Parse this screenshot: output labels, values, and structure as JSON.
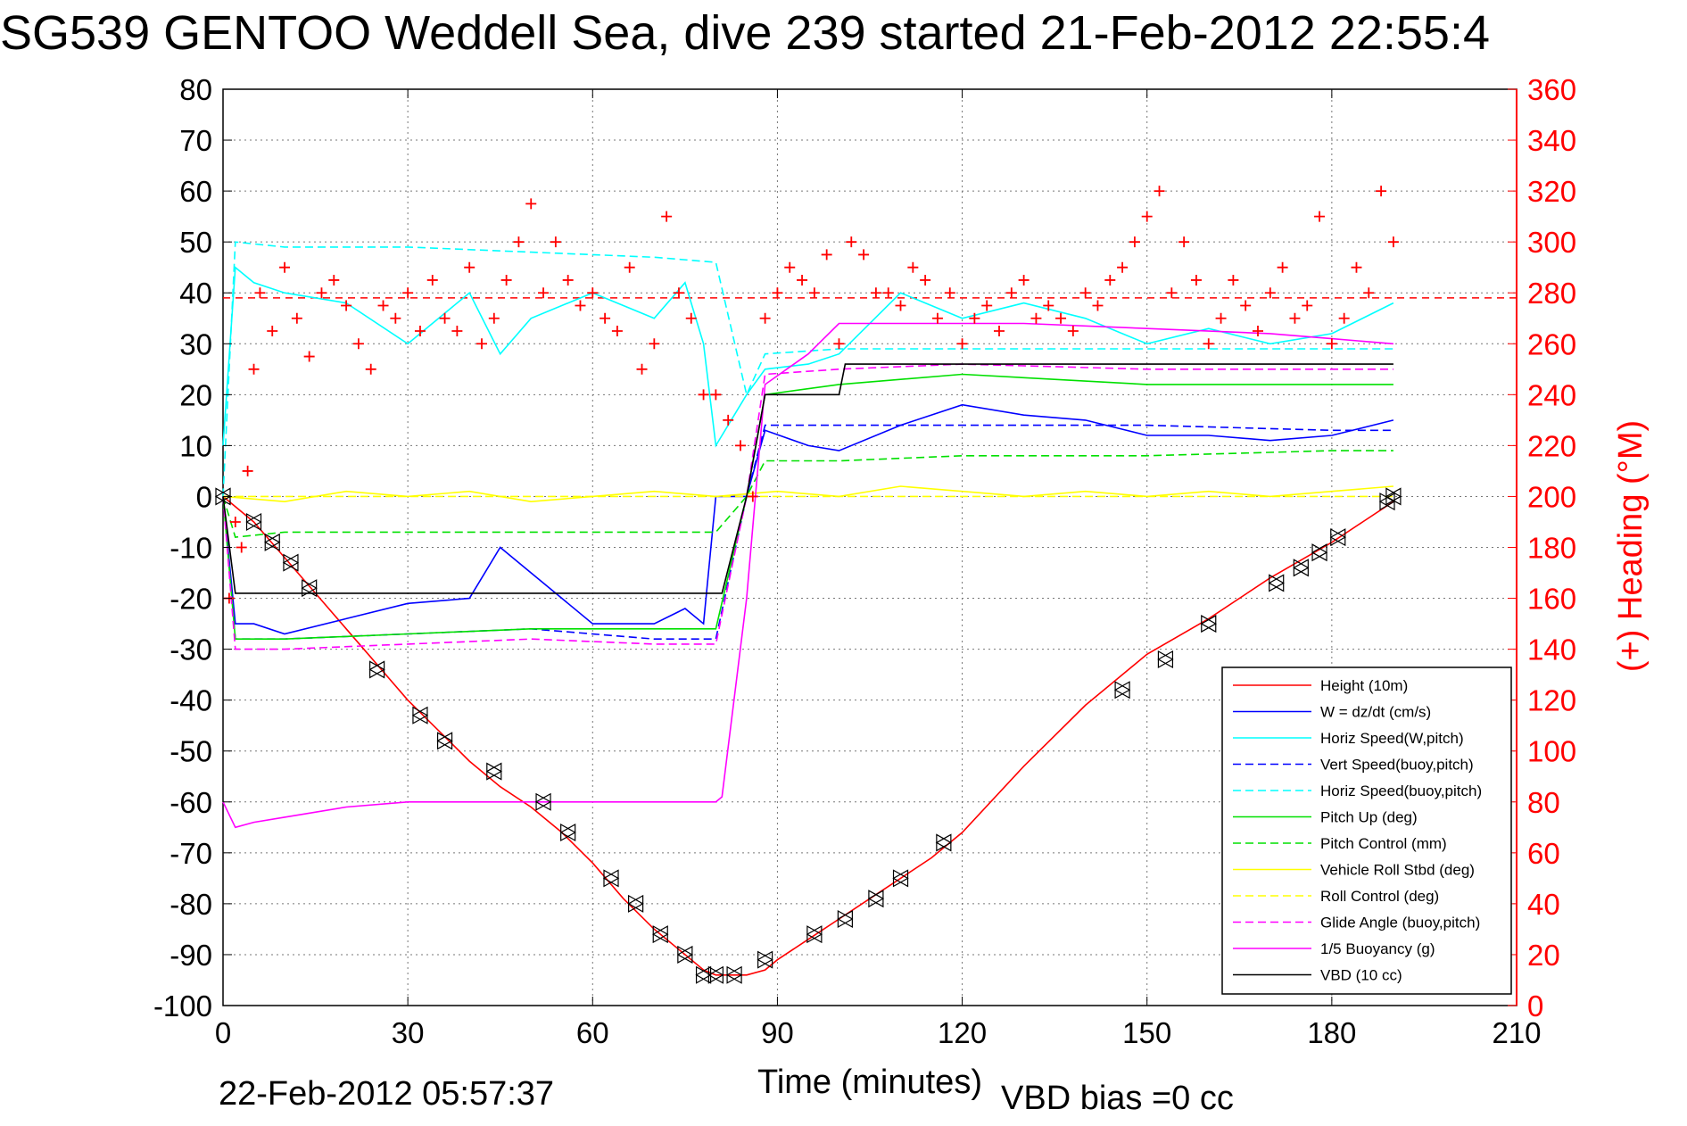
{
  "title": "SG539 GENTOO Weddell Sea, dive 239 started 21-Feb-2012 22:55:4",
  "footer": {
    "timestamp": "22-Feb-2012 05:57:37",
    "vbd_bias": "VBD bias =0 cc"
  },
  "colors": {
    "height": "#ff0000",
    "w": "#0000ff",
    "horiz_speed": "#00ffff",
    "pitch": "#00e000",
    "roll": "#ffff00",
    "glide": "#ff00ff",
    "buoyancy": "#ff00ff",
    "vbd": "#000000",
    "heading": "#ff0000"
  },
  "chart_data": {
    "type": "line",
    "title": "SG539 GENTOO Weddell Sea, dive 239 started 21-Feb-2012 22:55:4",
    "xlabel": "Time (minutes)",
    "ylabel": "",
    "y2label": "(+) Heading (°M)",
    "xlim": [
      0,
      210
    ],
    "ylim": [
      -100,
      80
    ],
    "y2lim": [
      0,
      360
    ],
    "xticks": [
      "0",
      "30",
      "60",
      "90",
      "120",
      "150",
      "180",
      "210"
    ],
    "yticks": [
      "80",
      "70",
      "60",
      "50",
      "40",
      "30",
      "20",
      "10",
      "0",
      "-10",
      "-20",
      "-30",
      "-40",
      "-50",
      "-60",
      "-70",
      "-80",
      "-90",
      "-100"
    ],
    "y2ticks": [
      "360",
      "340",
      "320",
      "300",
      "280",
      "260",
      "240",
      "220",
      "200",
      "180",
      "160",
      "140",
      "120",
      "100",
      "80",
      "60",
      "40",
      "20",
      "0"
    ],
    "grid": true,
    "legend_position": "bottom-right",
    "heading_target": 278,
    "series": [
      {
        "name": "Height (10m)",
        "style": "solid",
        "color": "#ff0000",
        "x": [
          0,
          5,
          10,
          15,
          20,
          25,
          30,
          35,
          40,
          45,
          50,
          55,
          60,
          65,
          70,
          75,
          78,
          80,
          82,
          85,
          88,
          90,
          95,
          100,
          105,
          110,
          115,
          120,
          130,
          140,
          150,
          160,
          170,
          180,
          185,
          190
        ],
        "values": [
          0,
          -5,
          -12,
          -19,
          -26,
          -33,
          -40,
          -46,
          -52,
          -57,
          -61,
          -66,
          -72,
          -79,
          -85,
          -90,
          -93,
          -94,
          -94,
          -94,
          -93,
          -91,
          -87,
          -83,
          -79,
          -75,
          -71,
          -66,
          -53,
          -41,
          -31,
          -24,
          -16,
          -9,
          -5,
          -1
        ]
      },
      {
        "name": "W = dz/dt (cm/s)",
        "style": "solid",
        "color": "#0000ff",
        "x": [
          0,
          2,
          5,
          10,
          20,
          30,
          40,
          45,
          50,
          60,
          70,
          75,
          78,
          80,
          85,
          88,
          95,
          100,
          110,
          120,
          130,
          140,
          150,
          160,
          170,
          180,
          190
        ],
        "values": [
          0,
          -25,
          -25,
          -27,
          -24,
          -21,
          -20,
          -10,
          -15,
          -25,
          -25,
          -22,
          -25,
          0,
          0,
          13,
          10,
          9,
          14,
          18,
          16,
          15,
          12,
          12,
          11,
          12,
          15
        ]
      },
      {
        "name": "Horiz Speed(W,pitch)",
        "style": "solid",
        "color": "#00ffff",
        "x": [
          0,
          2,
          5,
          10,
          20,
          30,
          40,
          45,
          50,
          60,
          70,
          75,
          78,
          80,
          85,
          88,
          95,
          100,
          110,
          120,
          130,
          140,
          150,
          160,
          170,
          180,
          190
        ],
        "values": [
          10,
          45,
          42,
          40,
          38,
          30,
          40,
          28,
          35,
          40,
          35,
          42,
          30,
          10,
          20,
          25,
          26,
          28,
          40,
          35,
          38,
          35,
          30,
          33,
          30,
          32,
          38
        ]
      },
      {
        "name": "Vert Speed(buoy,pitch)",
        "style": "dashed",
        "color": "#0000ff",
        "x": [
          0,
          2,
          10,
          30,
          50,
          70,
          80,
          85,
          88,
          100,
          120,
          150,
          180,
          190
        ],
        "values": [
          0,
          -28,
          -28,
          -27,
          -26,
          -28,
          -28,
          0,
          14,
          14,
          14,
          14,
          13,
          13
        ]
      },
      {
        "name": "Horiz Speed(buoy,pitch)",
        "style": "dashed",
        "color": "#00ffff",
        "x": [
          0,
          2,
          10,
          30,
          50,
          70,
          80,
          85,
          88,
          100,
          120,
          150,
          180,
          190
        ],
        "values": [
          0,
          50,
          49,
          49,
          48,
          47,
          46,
          20,
          28,
          29,
          29,
          29,
          29,
          29
        ]
      },
      {
        "name": "Pitch Up (deg)",
        "style": "solid",
        "color": "#00e000",
        "x": [
          0,
          2,
          10,
          30,
          50,
          70,
          80,
          85,
          88,
          100,
          120,
          150,
          180,
          190
        ],
        "values": [
          0,
          -28,
          -28,
          -27,
          -26,
          -26,
          -26,
          0,
          20,
          22,
          24,
          22,
          22,
          22
        ]
      },
      {
        "name": "Pitch Control (mm)",
        "style": "dashed",
        "color": "#00e000",
        "x": [
          0,
          2,
          10,
          30,
          50,
          70,
          80,
          85,
          88,
          100,
          120,
          150,
          180,
          190
        ],
        "values": [
          0,
          -8,
          -7,
          -7,
          -7,
          -7,
          -7,
          0,
          7,
          7,
          8,
          8,
          9,
          9
        ]
      },
      {
        "name": "Vehicle Roll Stbd (deg)",
        "style": "solid",
        "color": "#ffff00",
        "x": [
          0,
          10,
          20,
          30,
          40,
          50,
          60,
          70,
          80,
          90,
          100,
          110,
          120,
          130,
          140,
          150,
          160,
          170,
          180,
          190
        ],
        "values": [
          0,
          -1,
          1,
          0,
          1,
          -1,
          0,
          1,
          0,
          1,
          0,
          2,
          1,
          0,
          1,
          0,
          1,
          0,
          1,
          2
        ]
      },
      {
        "name": "Roll Control (deg)",
        "style": "dashed",
        "color": "#ffff00",
        "x": [
          0,
          30,
          60,
          90,
          120,
          150,
          180,
          190
        ],
        "values": [
          0,
          0,
          0,
          0,
          0,
          0,
          0,
          0
        ]
      },
      {
        "name": "Glide Angle (buoy,pitch)",
        "style": "dashed",
        "color": "#ff00ff",
        "x": [
          0,
          2,
          10,
          30,
          50,
          70,
          80,
          85,
          88,
          100,
          120,
          150,
          180,
          190
        ],
        "values": [
          0,
          -30,
          -30,
          -29,
          -28,
          -29,
          -29,
          0,
          24,
          25,
          26,
          25,
          25,
          25
        ]
      },
      {
        "name": "1/5 Buoyancy (g)",
        "style": "solid",
        "color": "#ff00ff",
        "x": [
          0,
          2,
          5,
          10,
          20,
          30,
          40,
          50,
          60,
          70,
          80,
          81,
          85,
          88,
          95,
          100,
          110,
          130,
          150,
          170,
          180,
          190
        ],
        "values": [
          -60,
          -65,
          -64,
          -63,
          -61,
          -60,
          -60,
          -60,
          -60,
          -60,
          -60,
          -59,
          -20,
          22,
          28,
          34,
          34,
          34,
          33,
          32,
          31,
          30
        ]
      },
      {
        "name": "VBD (10 cc)",
        "style": "solid",
        "color": "#000000",
        "x": [
          0,
          2,
          10,
          30,
          50,
          70,
          80,
          81,
          85,
          88,
          100,
          101,
          110,
          150,
          190
        ],
        "values": [
          0,
          -19,
          -19,
          -19,
          -19,
          -19,
          -19,
          -19,
          0,
          20,
          20,
          26,
          26,
          26,
          26
        ]
      }
    ],
    "heading": {
      "name": "(+) Heading",
      "x": [
        1,
        2,
        3,
        4,
        5,
        6,
        8,
        10,
        12,
        14,
        16,
        18,
        20,
        22,
        24,
        26,
        28,
        30,
        32,
        34,
        36,
        38,
        40,
        42,
        44,
        46,
        48,
        50,
        52,
        54,
        56,
        58,
        60,
        62,
        64,
        66,
        68,
        70,
        72,
        74,
        76,
        78,
        80,
        82,
        84,
        86,
        88,
        90,
        92,
        94,
        96,
        98,
        100,
        102,
        104,
        106,
        108,
        110,
        112,
        114,
        116,
        118,
        120,
        122,
        124,
        126,
        128,
        130,
        132,
        134,
        136,
        138,
        140,
        142,
        144,
        146,
        148,
        150,
        152,
        154,
        156,
        158,
        160,
        162,
        164,
        166,
        168,
        170,
        172,
        174,
        176,
        178,
        180,
        182,
        184,
        186,
        188,
        190
      ],
      "values": [
        160,
        190,
        180,
        210,
        250,
        280,
        265,
        290,
        270,
        255,
        280,
        285,
        275,
        260,
        250,
        275,
        270,
        280,
        265,
        285,
        270,
        265,
        290,
        260,
        270,
        285,
        300,
        315,
        280,
        300,
        285,
        275,
        280,
        270,
        265,
        290,
        250,
        260,
        310,
        280,
        270,
        240,
        240,
        230,
        220,
        200,
        270,
        280,
        290,
        285,
        280,
        295,
        260,
        300,
        295,
        280,
        280,
        275,
        290,
        285,
        270,
        280,
        260,
        270,
        275,
        265,
        280,
        285,
        270,
        275,
        270,
        265,
        280,
        275,
        285,
        290,
        300,
        310,
        320,
        280,
        300,
        285,
        260,
        270,
        285,
        275,
        265,
        280,
        290,
        270,
        275,
        310,
        260,
        270,
        290,
        280,
        320,
        300
      ]
    },
    "markers": {
      "name": "Height markers",
      "x": [
        0,
        5,
        8,
        11,
        14,
        25,
        32,
        36,
        44,
        52,
        56,
        63,
        67,
        71,
        75,
        78,
        80,
        83,
        88,
        96,
        101,
        106,
        110,
        117,
        146,
        153,
        160,
        171,
        175,
        178,
        181,
        189,
        190
      ],
      "values": [
        0,
        -5,
        -9,
        -13,
        -18,
        -34,
        -43,
        -48,
        -54,
        -60,
        -66,
        -75,
        -80,
        -86,
        -90,
        -94,
        -94,
        -94,
        -91,
        -86,
        -83,
        -79,
        -75,
        -68,
        -38,
        -32,
        -25,
        -17,
        -14,
        -11,
        -8,
        -1,
        0
      ]
    },
    "legend": [
      "Height (10m)",
      "W = dz/dt (cm/s)",
      "Horiz Speed(W,pitch)",
      "Vert Speed(buoy,pitch)",
      "Horiz Speed(buoy,pitch)",
      "Pitch Up (deg)",
      "Pitch Control (mm)",
      "Vehicle Roll Stbd (deg)",
      "Roll Control (deg)",
      "Glide Angle (buoy,pitch)",
      "1/5 Buoyancy (g)",
      "VBD (10 cc)"
    ]
  }
}
